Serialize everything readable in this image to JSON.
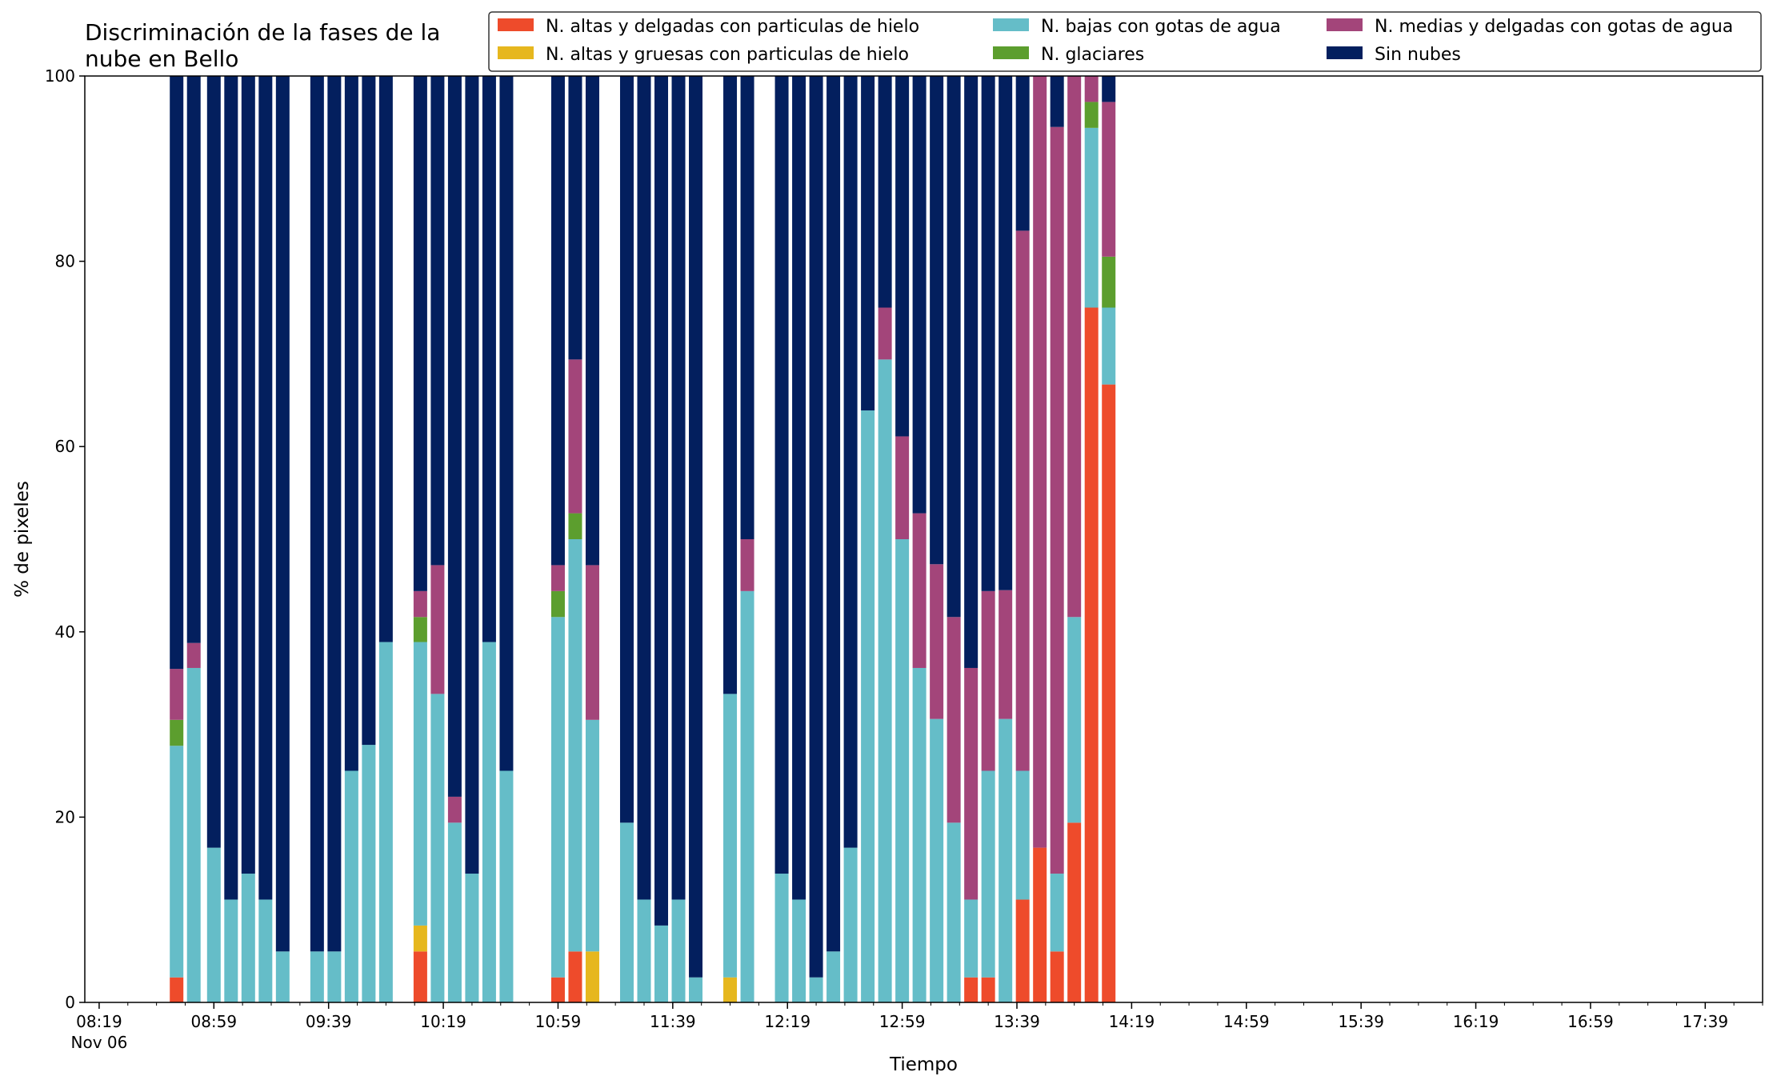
{
  "chart_data": {
    "type": "bar",
    "stacked": true,
    "title_lines": [
      "Discriminación de la fases de la",
      "nube en Bello"
    ],
    "xlabel": "Tiempo",
    "ylabel": "% de pixeles",
    "ylim": [
      0,
      100
    ],
    "yticks": [
      0,
      20,
      40,
      60,
      80,
      100
    ],
    "xlim": [
      "08:14",
      "17:59"
    ],
    "xticks": [
      {
        "time": "08:19",
        "label": "08:19",
        "sublabel": "Nov 06"
      },
      {
        "time": "08:59",
        "label": "08:59"
      },
      {
        "time": "09:39",
        "label": "09:39"
      },
      {
        "time": "10:19",
        "label": "10:19"
      },
      {
        "time": "10:59",
        "label": "10:59"
      },
      {
        "time": "11:39",
        "label": "11:39"
      },
      {
        "time": "12:19",
        "label": "12:19"
      },
      {
        "time": "12:59",
        "label": "12:59"
      },
      {
        "time": "13:39",
        "label": "13:39"
      },
      {
        "time": "14:19",
        "label": "14:19"
      },
      {
        "time": "14:59",
        "label": "14:59"
      },
      {
        "time": "15:39",
        "label": "15:39"
      },
      {
        "time": "16:19",
        "label": "16:19"
      },
      {
        "time": "16:59",
        "label": "16:59"
      },
      {
        "time": "17:39",
        "label": "17:39"
      }
    ],
    "minor_tick_minutes": 10,
    "legend_position": "top-right",
    "series": [
      {
        "name": "N. altas y delgadas con particulas de hielo",
        "color": "#ee4b2b"
      },
      {
        "name": "N. altas y gruesas con particulas de hielo",
        "color": "#e6b71e"
      },
      {
        "name": "N. bajas con gotas de agua",
        "color": "#65bdc8"
      },
      {
        "name": "N. glaciares",
        "color": "#5c9e2e"
      },
      {
        "name": "N. medias y delgadas con gotas de agua",
        "color": "#a3457a"
      },
      {
        "name": "Sin nubes",
        "color": "#031f5e"
      }
    ],
    "bars": [
      {
        "time": "08:46",
        "values": [
          2.7,
          0,
          25.0,
          2.8,
          5.5,
          64.0
        ]
      },
      {
        "time": "08:52",
        "values": [
          0,
          0,
          36.1,
          0,
          2.7,
          61.2
        ]
      },
      {
        "time": "08:59",
        "values": [
          0,
          0,
          16.7,
          0,
          0,
          83.3
        ]
      },
      {
        "time": "09:05",
        "values": [
          0,
          0,
          11.1,
          0,
          0,
          88.9
        ]
      },
      {
        "time": "09:11",
        "values": [
          0,
          0,
          13.9,
          0,
          0,
          86.1
        ]
      },
      {
        "time": "09:17",
        "values": [
          0,
          0,
          11.1,
          0,
          0,
          88.9
        ]
      },
      {
        "time": "09:23",
        "values": [
          0,
          0,
          5.5,
          0,
          0,
          94.5
        ]
      },
      {
        "time": "09:35",
        "values": [
          0,
          0,
          5.5,
          0,
          0,
          94.5
        ]
      },
      {
        "time": "09:41",
        "values": [
          0,
          0,
          5.5,
          0,
          0,
          94.5
        ]
      },
      {
        "time": "09:47",
        "values": [
          0,
          0,
          25.0,
          0,
          0,
          75.0
        ]
      },
      {
        "time": "09:53",
        "values": [
          0,
          0,
          27.8,
          0,
          0,
          72.2
        ]
      },
      {
        "time": "09:59",
        "values": [
          0,
          0,
          38.9,
          0,
          0,
          61.1
        ]
      },
      {
        "time": "10:11",
        "values": [
          5.5,
          2.8,
          30.6,
          2.7,
          2.8,
          55.6
        ]
      },
      {
        "time": "10:17",
        "values": [
          0,
          0,
          33.3,
          0,
          13.9,
          52.8
        ]
      },
      {
        "time": "10:23",
        "values": [
          0,
          0,
          19.4,
          0,
          2.8,
          77.8
        ]
      },
      {
        "time": "10:29",
        "values": [
          0,
          0,
          13.9,
          0,
          0,
          86.1
        ]
      },
      {
        "time": "10:35",
        "values": [
          0,
          0,
          38.9,
          0,
          0,
          61.1
        ]
      },
      {
        "time": "10:41",
        "values": [
          0,
          0,
          25.0,
          0,
          0,
          75.0
        ]
      },
      {
        "time": "10:59",
        "values": [
          2.7,
          0,
          38.9,
          2.8,
          2.8,
          52.8
        ]
      },
      {
        "time": "11:05",
        "values": [
          5.5,
          0,
          44.5,
          2.8,
          16.6,
          30.6
        ]
      },
      {
        "time": "11:11",
        "values": [
          0,
          5.5,
          25.0,
          0,
          16.7,
          52.8
        ]
      },
      {
        "time": "11:23",
        "values": [
          0,
          0,
          19.4,
          0,
          0,
          80.6
        ]
      },
      {
        "time": "11:29",
        "values": [
          0,
          0,
          11.1,
          0,
          0,
          88.9
        ]
      },
      {
        "time": "11:35",
        "values": [
          0,
          0,
          8.3,
          0,
          0,
          91.7
        ]
      },
      {
        "time": "11:41",
        "values": [
          0,
          0,
          11.1,
          0,
          0,
          88.9
        ]
      },
      {
        "time": "11:47",
        "values": [
          0,
          0,
          2.7,
          0,
          0,
          97.3
        ]
      },
      {
        "time": "11:59",
        "values": [
          0,
          2.7,
          30.6,
          0,
          0,
          66.7
        ]
      },
      {
        "time": "12:05",
        "values": [
          0,
          0,
          44.4,
          0,
          5.6,
          50.0
        ]
      },
      {
        "time": "12:17",
        "values": [
          0,
          0,
          13.9,
          0,
          0,
          86.1
        ]
      },
      {
        "time": "12:23",
        "values": [
          0,
          0,
          11.1,
          0,
          0,
          88.9
        ]
      },
      {
        "time": "12:29",
        "values": [
          0,
          0,
          2.7,
          0,
          0,
          97.3
        ]
      },
      {
        "time": "12:35",
        "values": [
          0,
          0,
          5.5,
          0,
          0,
          94.5
        ]
      },
      {
        "time": "12:41",
        "values": [
          0,
          0,
          16.7,
          0,
          0,
          83.3
        ]
      },
      {
        "time": "12:47",
        "values": [
          0,
          0,
          63.9,
          0,
          0,
          36.1
        ]
      },
      {
        "time": "12:53",
        "values": [
          0,
          0,
          69.4,
          0,
          5.6,
          25.0
        ]
      },
      {
        "time": "12:59",
        "values": [
          0,
          0,
          50.0,
          0,
          11.1,
          38.9
        ]
      },
      {
        "time": "13:05",
        "values": [
          0,
          0,
          36.1,
          0,
          16.7,
          47.2
        ]
      },
      {
        "time": "13:11",
        "values": [
          0,
          0,
          30.6,
          0,
          16.7,
          52.7
        ]
      },
      {
        "time": "13:17",
        "values": [
          0,
          0,
          19.4,
          0,
          22.2,
          58.4
        ]
      },
      {
        "time": "13:23",
        "values": [
          2.7,
          0,
          8.4,
          0,
          25.0,
          63.9
        ]
      },
      {
        "time": "13:29",
        "values": [
          2.7,
          0,
          22.3,
          0,
          19.4,
          55.6
        ]
      },
      {
        "time": "13:35",
        "values": [
          0,
          0,
          30.6,
          0,
          13.9,
          55.5
        ]
      },
      {
        "time": "13:41",
        "values": [
          11.1,
          0,
          13.9,
          0,
          58.3,
          16.7
        ]
      },
      {
        "time": "13:47",
        "values": [
          16.7,
          0,
          0,
          0,
          83.3,
          0
        ]
      },
      {
        "time": "13:53",
        "values": [
          5.5,
          0,
          8.4,
          0,
          80.6,
          5.5
        ]
      },
      {
        "time": "13:59",
        "values": [
          19.4,
          0,
          22.2,
          0,
          58.4,
          0
        ]
      },
      {
        "time": "14:05",
        "values": [
          75.0,
          0,
          19.4,
          2.8,
          2.8,
          0
        ]
      },
      {
        "time": "14:11",
        "values": [
          66.7,
          0,
          8.3,
          5.5,
          16.7,
          2.8
        ]
      }
    ]
  }
}
